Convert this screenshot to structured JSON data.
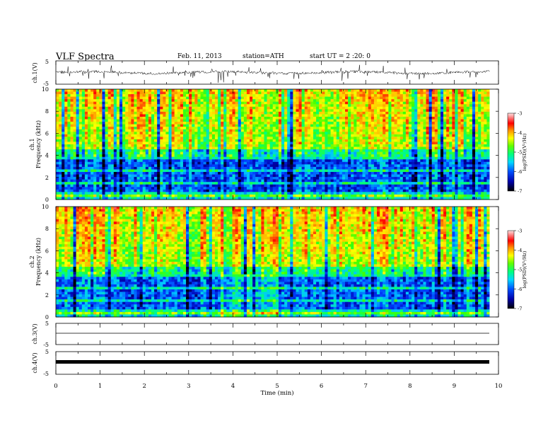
{
  "header": {
    "title": "VLF  Spectra",
    "date": "Feb. 11, 2013",
    "station": "station=ATH",
    "start": "start  UT =   2  :20: 0"
  },
  "chart_data": [
    {
      "type": "line",
      "name": "ch1-waveform",
      "ylabel": "ch.1(V)",
      "yticks": [
        "5",
        "-5"
      ],
      "ylim": [
        -5,
        5
      ],
      "baseline": 0,
      "color": "#000000"
    },
    {
      "type": "heatmap",
      "name": "ch1-spectrogram",
      "ylabel_top": "ch.1",
      "ylabel": "Frequency  (kHz)",
      "ylim": [
        0,
        10
      ],
      "yticks": [
        "0",
        "2",
        "4",
        "6",
        "8",
        "10"
      ],
      "xlim": [
        0,
        9.8
      ],
      "colorbar": {
        "label": "log(PSD)(V²/Hz)",
        "ticks": [
          "-3",
          "-4",
          "-5",
          "-6",
          "-7"
        ],
        "range": [
          -7,
          -3
        ]
      }
    },
    {
      "type": "heatmap",
      "name": "ch2-spectrogram",
      "ylabel_top": "ch.2",
      "ylabel": "Frequency  (kHz)",
      "ylim": [
        0,
        10
      ],
      "yticks": [
        "0",
        "2",
        "4",
        "6",
        "8",
        "10"
      ],
      "xlim": [
        0,
        9.8
      ],
      "colorbar": {
        "label": "log(PSD)(V²/Hz)",
        "ticks": [
          "-3",
          "-4",
          "-5",
          "-6",
          "-7"
        ],
        "range": [
          -7,
          -3
        ]
      }
    },
    {
      "type": "line",
      "name": "ch3-waveform",
      "ylabel": "ch.3(V)",
      "yticks": [
        "5",
        "-5"
      ],
      "ylim": [
        -5,
        5
      ],
      "color": "#000000"
    },
    {
      "type": "line",
      "name": "ch4-waveform",
      "ylabel": "ch.4(V)",
      "yticks": [
        "5",
        "-5"
      ],
      "ylim": [
        -5,
        5
      ],
      "color": "#000000"
    }
  ],
  "xaxis": {
    "label": "Time  (min)",
    "range": [
      0,
      10
    ],
    "ticks": [
      "0",
      "1",
      "2",
      "3",
      "4",
      "5",
      "6",
      "7",
      "8",
      "9",
      "10"
    ]
  },
  "colors": {
    "scale": [
      "#000000",
      "#0000aa",
      "#0040ff",
      "#00c8ff",
      "#00ff80",
      "#40ff00",
      "#ffff00",
      "#ffa000",
      "#ff0000",
      "#ffd0d0"
    ]
  }
}
